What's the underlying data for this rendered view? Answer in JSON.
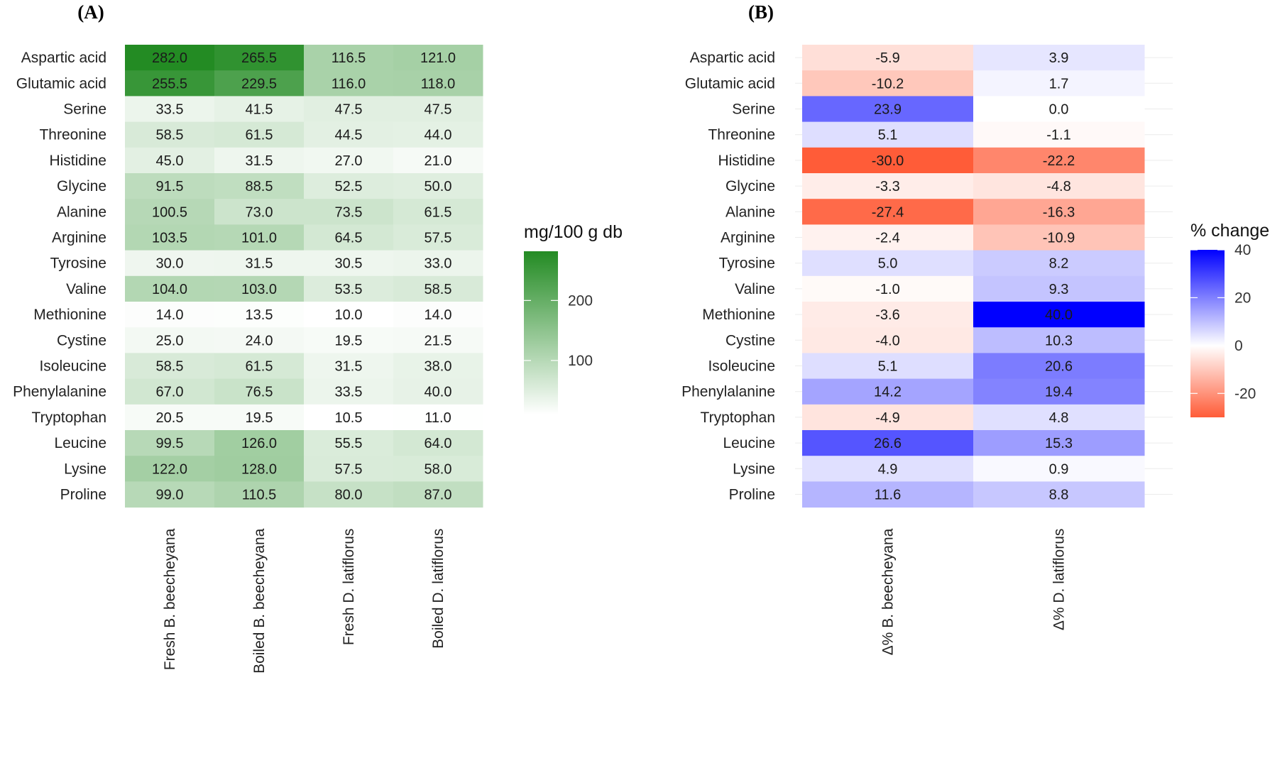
{
  "chart_data": [
    {
      "type": "heatmap",
      "panel_label": "(A)",
      "rows": [
        "Aspartic acid",
        "Glutamic acid",
        "Serine",
        "Threonine",
        "Histidine",
        "Glycine",
        "Alanine",
        "Arginine",
        "Tyrosine",
        "Valine",
        "Methionine",
        "Cystine",
        "Isoleucine",
        "Phenylalanine",
        "Tryptophan",
        "Leucine",
        "Lysine",
        "Proline"
      ],
      "columns": [
        "Fresh B. beecheyana",
        "Boiled B. beecheyana",
        "Fresh D. latiflorus",
        "Boiled D. latiflorus"
      ],
      "values": [
        [
          282.0,
          265.5,
          116.5,
          121.0
        ],
        [
          255.5,
          229.5,
          116.0,
          118.0
        ],
        [
          33.5,
          41.5,
          47.5,
          47.5
        ],
        [
          58.5,
          61.5,
          44.5,
          44.0
        ],
        [
          45.0,
          31.5,
          27.0,
          21.0
        ],
        [
          91.5,
          88.5,
          52.5,
          50.0
        ],
        [
          100.5,
          73.0,
          73.5,
          61.5
        ],
        [
          103.5,
          101.0,
          64.5,
          57.5
        ],
        [
          30.0,
          31.5,
          30.5,
          33.0
        ],
        [
          104.0,
          103.0,
          53.5,
          58.5
        ],
        [
          14.0,
          13.5,
          10.0,
          14.0
        ],
        [
          25.0,
          24.0,
          19.5,
          21.5
        ],
        [
          58.5,
          61.5,
          31.5,
          38.0
        ],
        [
          67.0,
          76.5,
          33.5,
          40.0
        ],
        [
          20.5,
          19.5,
          10.5,
          11.0
        ],
        [
          99.5,
          126.0,
          55.5,
          64.0
        ],
        [
          122.0,
          128.0,
          57.5,
          58.0
        ],
        [
          99.0,
          110.5,
          80.0,
          87.0
        ]
      ],
      "value_labels": [
        [
          "282.0",
          "265.5",
          "116.5",
          "121.0"
        ],
        [
          "255.5",
          "229.5",
          "116.0",
          "118.0"
        ],
        [
          "33.5",
          "41.5",
          "47.5",
          "47.5"
        ],
        [
          "58.5",
          "61.5",
          "44.5",
          "44.0"
        ],
        [
          "45.0",
          "31.5",
          "27.0",
          "21.0"
        ],
        [
          "91.5",
          "88.5",
          "52.5",
          "50.0"
        ],
        [
          "100.5",
          "73.0",
          "73.5",
          "61.5"
        ],
        [
          "103.5",
          "101.0",
          "64.5",
          "57.5"
        ],
        [
          "30.0",
          "31.5",
          "30.5",
          "33.0"
        ],
        [
          "104.0",
          "103.0",
          "53.5",
          "58.5"
        ],
        [
          "14.0",
          "13.5",
          "10.0",
          "14.0"
        ],
        [
          "25.0",
          "24.0",
          "19.5",
          "21.5"
        ],
        [
          "58.5",
          "61.5",
          "31.5",
          "38.0"
        ],
        [
          "67.0",
          "76.5",
          "33.5",
          "40.0"
        ],
        [
          "20.5",
          "19.5",
          "10.5",
          "11.0"
        ],
        [
          "99.5",
          "126.0",
          "55.5",
          "64.0"
        ],
        [
          "122.0",
          "128.0",
          "57.5",
          "58.0"
        ],
        [
          "99.0",
          "110.5",
          "80.0",
          "87.0"
        ]
      ],
      "legend": {
        "title": "mg/100 g db",
        "range": [
          10,
          282
        ],
        "ticks": [
          100,
          200
        ],
        "tick_labels": [
          "100",
          "200"
        ],
        "color_low": "#ffffff",
        "color_high": "#238b23"
      }
    },
    {
      "type": "heatmap",
      "panel_label": "(B)",
      "rows": [
        "Aspartic acid",
        "Glutamic acid",
        "Serine",
        "Threonine",
        "Histidine",
        "Glycine",
        "Alanine",
        "Arginine",
        "Tyrosine",
        "Valine",
        "Methionine",
        "Cystine",
        "Isoleucine",
        "Phenylalanine",
        "Tryptophan",
        "Leucine",
        "Lysine",
        "Proline"
      ],
      "columns": [
        "Δ% B. beecheyana",
        "Δ% D. latiflorus"
      ],
      "values": [
        [
          -5.9,
          3.9
        ],
        [
          -10.2,
          1.7
        ],
        [
          23.9,
          0.0
        ],
        [
          5.1,
          -1.1
        ],
        [
          -30.0,
          -22.2
        ],
        [
          -3.3,
          -4.8
        ],
        [
          -27.4,
          -16.3
        ],
        [
          -2.4,
          -10.9
        ],
        [
          5.0,
          8.2
        ],
        [
          -1.0,
          9.3
        ],
        [
          -3.6,
          40.0
        ],
        [
          -4.0,
          10.3
        ],
        [
          5.1,
          20.6
        ],
        [
          14.2,
          19.4
        ],
        [
          -4.9,
          4.8
        ],
        [
          26.6,
          15.3
        ],
        [
          4.9,
          0.9
        ],
        [
          11.6,
          8.8
        ]
      ],
      "value_labels": [
        [
          "-5.9",
          "3.9"
        ],
        [
          "-10.2",
          "1.7"
        ],
        [
          "23.9",
          "0.0"
        ],
        [
          "5.1",
          "-1.1"
        ],
        [
          "-30.0",
          "-22.2"
        ],
        [
          "-3.3",
          "-4.8"
        ],
        [
          "-27.4",
          "-16.3"
        ],
        [
          "-2.4",
          "-10.9"
        ],
        [
          "5.0",
          "8.2"
        ],
        [
          "-1.0",
          "9.3"
        ],
        [
          "-3.6",
          "40.0"
        ],
        [
          "-4.0",
          "10.3"
        ],
        [
          "5.1",
          "20.6"
        ],
        [
          "14.2",
          "19.4"
        ],
        [
          "-4.9",
          "4.8"
        ],
        [
          "26.6",
          "15.3"
        ],
        [
          "4.9",
          "0.9"
        ],
        [
          "11.6",
          "8.8"
        ]
      ],
      "legend": {
        "title": "% change",
        "range": [
          -30,
          40
        ],
        "ticks": [
          -20,
          0,
          20,
          40
        ],
        "tick_labels": [
          "-20",
          "0",
          "20",
          "40"
        ],
        "color_low": "#ff5c38",
        "color_mid": "#ffffff",
        "color_high": "#0000ff"
      }
    }
  ]
}
